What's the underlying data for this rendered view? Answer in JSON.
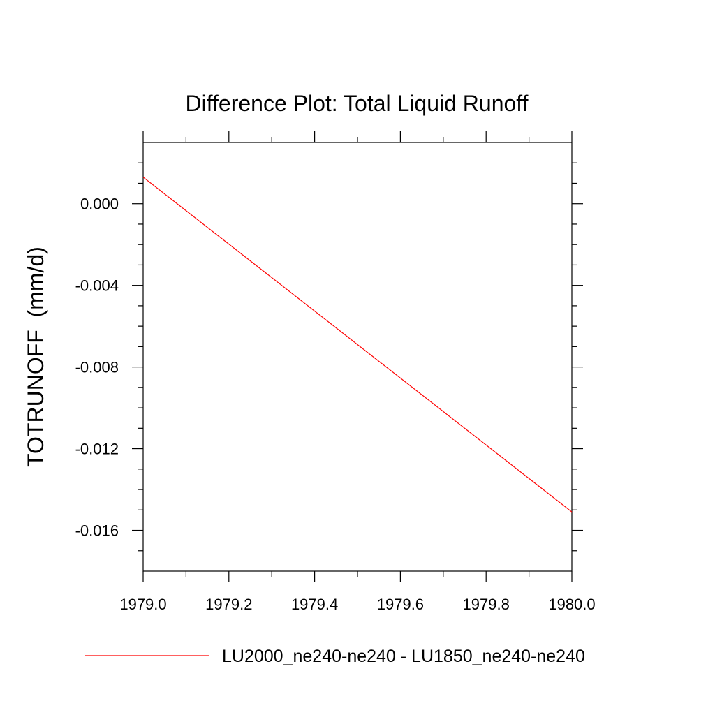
{
  "chart_data": {
    "type": "line",
    "title": "Difference Plot: Total Liquid Runoff",
    "xlabel": "",
    "ylabel": "TOTRUNOFF  (mm/d)",
    "xlim": [
      1979.0,
      1980.0
    ],
    "ylim": [
      -0.018,
      0.003
    ],
    "x_ticks": [
      1979.0,
      1979.2,
      1979.4,
      1979.6,
      1979.8,
      1980.0
    ],
    "x_tick_labels": [
      "1979.0",
      "1979.2",
      "1979.4",
      "1979.6",
      "1979.8",
      "1980.0"
    ],
    "x_minor_ticks": [
      1979.1,
      1979.3,
      1979.5,
      1979.7,
      1979.9
    ],
    "y_ticks": [
      0.0,
      -0.004,
      -0.008,
      -0.012,
      -0.016
    ],
    "y_tick_labels": [
      "0.000",
      "-0.004",
      "-0.008",
      "-0.012",
      "-0.016"
    ],
    "y_minor_ticks": [
      0.002,
      0.001,
      -0.001,
      -0.002,
      -0.003,
      -0.005,
      -0.006,
      -0.007,
      -0.009,
      -0.01,
      -0.011,
      -0.013,
      -0.014,
      -0.015,
      -0.017
    ],
    "grid": false,
    "legend_position": "bottom",
    "series": [
      {
        "name": "LU2000_ne240-ne240 - LU1850_ne240-ne240",
        "color": "#ff0000",
        "x": [
          1979.0,
          1980.0
        ],
        "y": [
          0.0013,
          -0.0151
        ]
      }
    ]
  }
}
